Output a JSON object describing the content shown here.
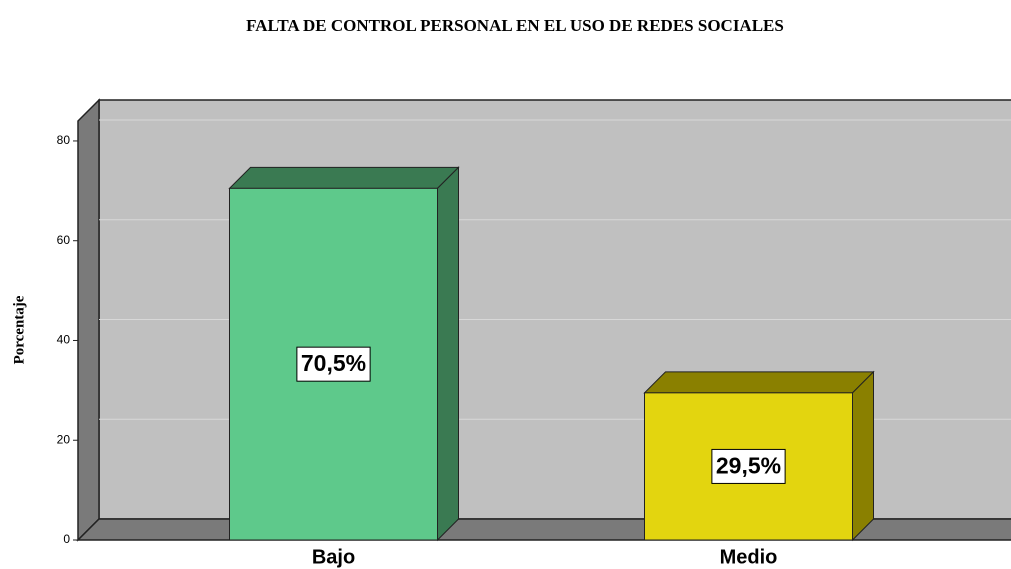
{
  "chart_data": {
    "type": "bar3d",
    "title": "FALTA DE CONTROL PERSONAL EN EL USO DE REDES SOCIALES",
    "y_label": "Porcentaje",
    "categories": [
      "Bajo",
      "Medio"
    ],
    "values": [
      70.5,
      29.5
    ],
    "value_labels": [
      "70,5%",
      "29,5%"
    ],
    "colors": [
      "#5ec98b",
      "#e3d50f"
    ],
    "side_colors": [
      "#3a7a52",
      "#8a8000"
    ],
    "ylim": [
      0,
      84
    ],
    "yticks": [
      0,
      20,
      40,
      60,
      80
    ],
    "grid": true
  }
}
